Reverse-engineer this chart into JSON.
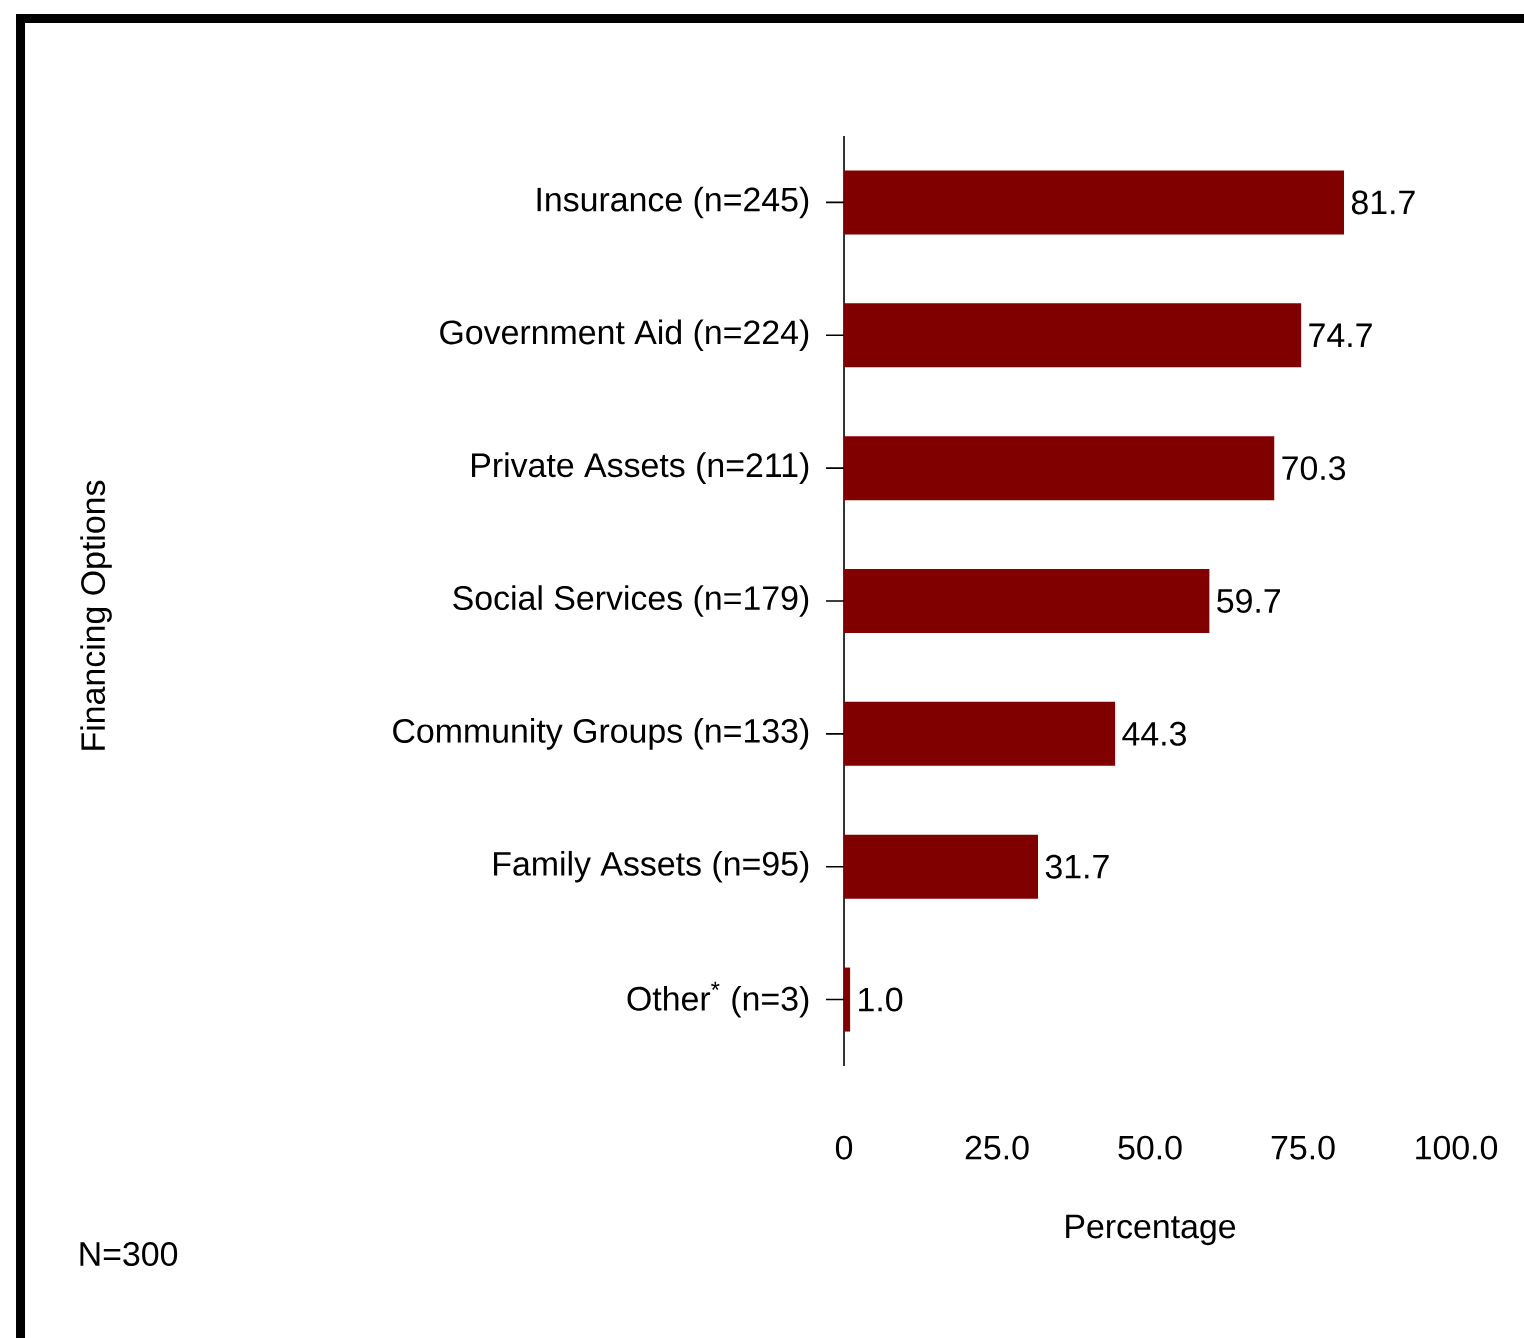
{
  "chart_data": {
    "type": "bar",
    "orientation": "horizontal",
    "categories": [
      "Insurance (n=245)",
      "Government Aid (n=224)",
      "Private Assets (n=211)",
      "Social Services (n=179)",
      "Community Groups (n=133)",
      "Family Assets (n=95)",
      "Other$^{*}$ (n=3)"
    ],
    "values": [
      81.7,
      74.7,
      70.3,
      59.7,
      44.3,
      31.7,
      1.0
    ],
    "value_labels": [
      "81.7",
      "74.7",
      "70.3",
      "59.7",
      "44.3",
      "31.7",
      "1.0"
    ],
    "color": "#800000",
    "xlim": [
      0,
      100
    ],
    "xticks": [
      {
        "value": 0,
        "label": "0"
      },
      {
        "value": 25,
        "label": "25.0"
      },
      {
        "value": 50,
        "label": "50.0"
      },
      {
        "value": 75,
        "label": "75.0"
      },
      {
        "value": 100,
        "label": "100.0"
      }
    ],
    "xlabel": "Percentage",
    "annotations": [
      "N=300",
      "Financing Options"
    ]
  }
}
